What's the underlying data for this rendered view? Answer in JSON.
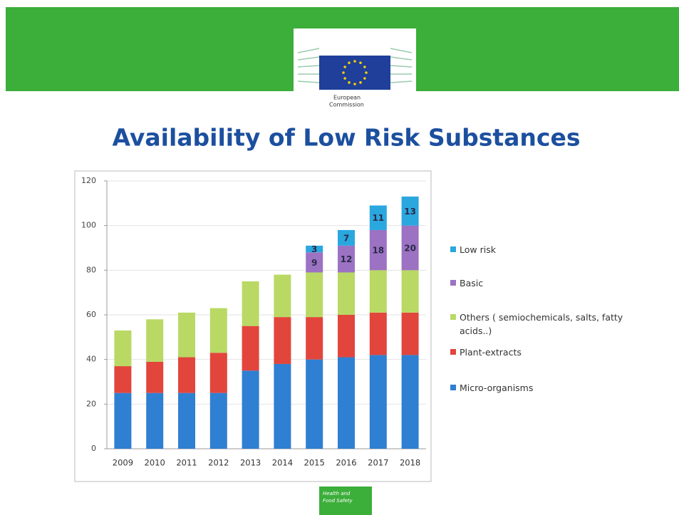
{
  "header": {
    "logo_line1": "European",
    "logo_line2": "Commission"
  },
  "footer": {
    "line1": "Health and",
    "line2": "Food Safety"
  },
  "chart_data": {
    "type": "stacked_bar",
    "title": "Availability of Low Risk Substances",
    "categories": [
      "2009",
      "2010",
      "2011",
      "2012",
      "2013",
      "2014",
      "2015",
      "2016",
      "2017",
      "2018"
    ],
    "series": [
      {
        "name": "Micro-organisms",
        "color": "#2f7fd3",
        "values": [
          25,
          25,
          25,
          25,
          35,
          38,
          40,
          41,
          42,
          42
        ]
      },
      {
        "name": "Plant-extracts",
        "color": "#e2453c",
        "values": [
          12,
          14,
          16,
          18,
          20,
          21,
          19,
          19,
          19,
          19
        ]
      },
      {
        "name": "Others ( semiochemicals, salts, fatty acids..)",
        "color": "#b9d964",
        "values": [
          16,
          19,
          20,
          20,
          20,
          19,
          20,
          19,
          19,
          19
        ]
      },
      {
        "name": "Basic",
        "color": "#9c72c2",
        "values": [
          null,
          null,
          null,
          null,
          null,
          null,
          9,
          12,
          18,
          20
        ],
        "data_labels": true
      },
      {
        "name": "Low risk",
        "color": "#2aa7df",
        "values": [
          null,
          null,
          null,
          null,
          null,
          null,
          3,
          7,
          11,
          13
        ],
        "data_labels": true
      }
    ],
    "ylim": [
      0,
      120
    ],
    "yticks": [
      0,
      20,
      40,
      60,
      80,
      100,
      120
    ],
    "grid": true,
    "legend": "right"
  }
}
